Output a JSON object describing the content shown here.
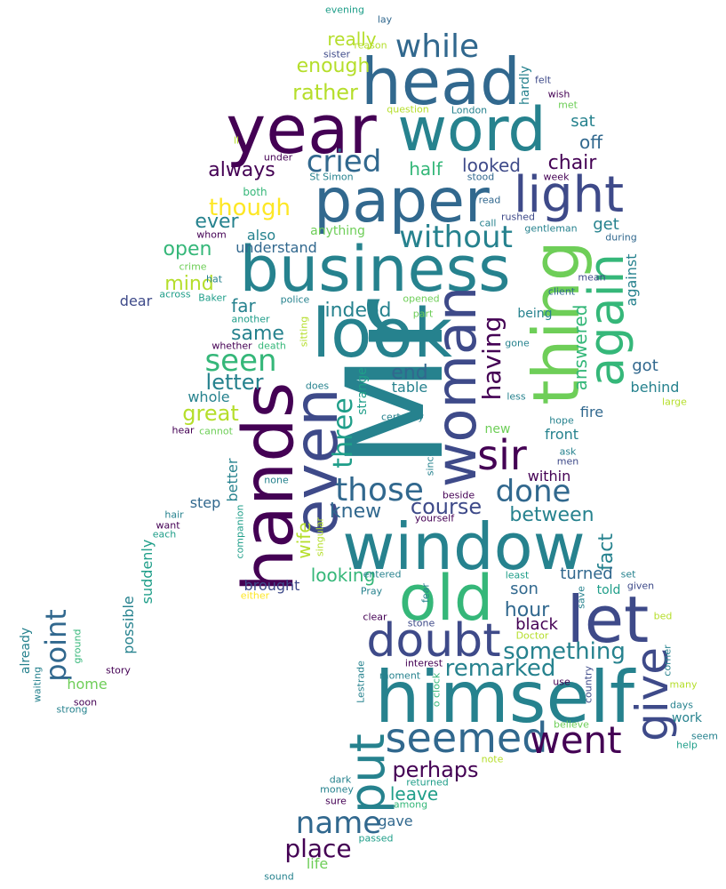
{
  "palette": {
    "dark_purple": "#440154",
    "indigo": "#3e4a89",
    "blue": "#31688e",
    "teal": "#26828e",
    "green": "#1f9e89",
    "light_green": "#35b779",
    "lime": "#6ece58",
    "yellow_green": "#b5de2b",
    "yellow": "#fde725"
  },
  "words": [
    {
      "text": "Mr",
      "color": "teal",
      "orientation": "vertical"
    },
    {
      "text": "window",
      "color": "teal",
      "orientation": "horizontal"
    },
    {
      "text": "business",
      "color": "teal",
      "orientation": "horizontal"
    },
    {
      "text": "paper",
      "color": "blue",
      "orientation": "horizontal"
    },
    {
      "text": "look",
      "color": "teal",
      "orientation": "horizontal"
    },
    {
      "text": "himself",
      "color": "teal",
      "orientation": "horizontal"
    },
    {
      "text": "head",
      "color": "blue",
      "orientation": "horizontal"
    },
    {
      "text": "word",
      "color": "teal",
      "orientation": "horizontal"
    },
    {
      "text": "year",
      "color": "dark_purple",
      "orientation": "horizontal"
    },
    {
      "text": "hands",
      "color": "dark_purple",
      "orientation": "vertical"
    },
    {
      "text": "even",
      "color": "indigo",
      "orientation": "vertical"
    },
    {
      "text": "woman",
      "color": "indigo",
      "orientation": "vertical"
    },
    {
      "text": "thing",
      "color": "lime",
      "orientation": "vertical"
    },
    {
      "text": "old",
      "color": "light_green",
      "orientation": "horizontal"
    },
    {
      "text": "let",
      "color": "indigo",
      "orientation": "horizontal"
    },
    {
      "text": "light",
      "color": "indigo",
      "orientation": "horizontal"
    },
    {
      "text": "again",
      "color": "light_green",
      "orientation": "vertical"
    },
    {
      "text": "doubt",
      "color": "indigo",
      "orientation": "horizontal"
    },
    {
      "text": "seemed",
      "color": "blue",
      "orientation": "horizontal"
    },
    {
      "text": "put",
      "color": "teal",
      "orientation": "vertical"
    },
    {
      "text": "give",
      "color": "indigo",
      "orientation": "vertical"
    },
    {
      "text": "went",
      "color": "dark_purple",
      "orientation": "horizontal"
    },
    {
      "text": "sir",
      "color": "dark_purple",
      "orientation": "horizontal"
    },
    {
      "text": "without",
      "color": "teal",
      "orientation": "horizontal"
    },
    {
      "text": "while",
      "color": "blue",
      "orientation": "horizontal"
    },
    {
      "text": "those",
      "color": "blue",
      "orientation": "horizontal"
    },
    {
      "text": "cried",
      "color": "blue",
      "orientation": "horizontal"
    },
    {
      "text": "seen",
      "color": "light_green",
      "orientation": "horizontal"
    },
    {
      "text": "name",
      "color": "blue",
      "orientation": "horizontal"
    },
    {
      "text": "point",
      "color": "blue",
      "orientation": "vertical"
    },
    {
      "text": "done",
      "color": "blue",
      "orientation": "horizontal"
    },
    {
      "text": "three",
      "color": "green",
      "orientation": "vertical"
    },
    {
      "text": "having",
      "color": "dark_purple",
      "orientation": "vertical"
    },
    {
      "text": "something",
      "color": "teal",
      "orientation": "horizontal"
    },
    {
      "text": "remarked",
      "color": "teal",
      "orientation": "horizontal"
    },
    {
      "text": "place",
      "color": "dark_purple",
      "orientation": "horizontal"
    },
    {
      "text": "perhaps",
      "color": "dark_purple",
      "orientation": "horizontal"
    },
    {
      "text": "though",
      "color": "yellow",
      "orientation": "horizontal"
    },
    {
      "text": "course",
      "color": "indigo",
      "orientation": "horizontal"
    },
    {
      "text": "great",
      "color": "yellow_green",
      "orientation": "horizontal"
    },
    {
      "text": "letter",
      "color": "teal",
      "orientation": "horizontal"
    },
    {
      "text": "always",
      "color": "dark_purple",
      "orientation": "horizontal"
    },
    {
      "text": "rather",
      "color": "yellow_green",
      "orientation": "horizontal"
    },
    {
      "text": "between",
      "color": "teal",
      "orientation": "horizontal"
    },
    {
      "text": "indeed",
      "color": "teal",
      "orientation": "horizontal"
    },
    {
      "text": "hour",
      "color": "blue",
      "orientation": "horizontal"
    },
    {
      "text": "fact",
      "color": "teal",
      "orientation": "vertical"
    },
    {
      "text": "knew",
      "color": "blue",
      "orientation": "horizontal"
    },
    {
      "text": "looked",
      "color": "indigo",
      "orientation": "horizontal"
    },
    {
      "text": "answered",
      "color": "light_green",
      "orientation": "vertical"
    },
    {
      "text": "open",
      "color": "light_green",
      "orientation": "horizontal"
    },
    {
      "text": "end",
      "color": "blue",
      "orientation": "horizontal"
    },
    {
      "text": "chair",
      "color": "dark_purple",
      "orientation": "horizontal"
    },
    {
      "text": "ever",
      "color": "teal",
      "orientation": "horizontal"
    },
    {
      "text": "mind",
      "color": "yellow_green",
      "orientation": "horizontal"
    },
    {
      "text": "same",
      "color": "teal",
      "orientation": "horizontal"
    },
    {
      "text": "enough",
      "color": "yellow_green",
      "orientation": "horizontal"
    },
    {
      "text": "half",
      "color": "light_green",
      "orientation": "horizontal"
    },
    {
      "text": "really",
      "color": "yellow_green",
      "orientation": "horizontal"
    },
    {
      "text": "wife",
      "color": "yellow_green",
      "orientation": "vertical"
    },
    {
      "text": "looking",
      "color": "light_green",
      "orientation": "horizontal"
    },
    {
      "text": "leave",
      "color": "green",
      "orientation": "horizontal"
    },
    {
      "text": "life",
      "color": "lime",
      "orientation": "horizontal"
    },
    {
      "text": "far",
      "color": "teal",
      "orientation": "horizontal"
    },
    {
      "text": "off",
      "color": "blue",
      "orientation": "horizontal"
    },
    {
      "text": "get",
      "color": "teal",
      "orientation": "horizontal"
    },
    {
      "text": "sat",
      "color": "teal",
      "orientation": "horizontal"
    },
    {
      "text": "got",
      "color": "blue",
      "orientation": "horizontal"
    },
    {
      "text": "son",
      "color": "blue",
      "orientation": "horizontal"
    },
    {
      "text": "turned",
      "color": "blue",
      "orientation": "horizontal"
    },
    {
      "text": "black",
      "color": "dark_purple",
      "orientation": "horizontal"
    },
    {
      "text": "brought",
      "color": "indigo",
      "orientation": "horizontal"
    },
    {
      "text": "also",
      "color": "teal",
      "orientation": "horizontal"
    },
    {
      "text": "better",
      "color": "teal",
      "orientation": "vertical"
    },
    {
      "text": "against",
      "color": "teal",
      "orientation": "vertical"
    },
    {
      "text": "behind",
      "color": "teal",
      "orientation": "horizontal"
    },
    {
      "text": "whole",
      "color": "teal",
      "orientation": "horizontal"
    },
    {
      "text": "table",
      "color": "teal",
      "orientation": "horizontal"
    },
    {
      "text": "fire",
      "color": "blue",
      "orientation": "horizontal"
    },
    {
      "text": "front",
      "color": "teal",
      "orientation": "horizontal"
    },
    {
      "text": "within",
      "color": "dark_purple",
      "orientation": "horizontal"
    },
    {
      "text": "strange",
      "color": "green",
      "orientation": "vertical"
    },
    {
      "text": "step",
      "color": "blue",
      "orientation": "horizontal"
    },
    {
      "text": "possible",
      "color": "teal",
      "orientation": "vertical"
    },
    {
      "text": "suddenly",
      "color": "green",
      "orientation": "vertical"
    },
    {
      "text": "already",
      "color": "teal",
      "orientation": "vertical"
    },
    {
      "text": "home",
      "color": "lime",
      "orientation": "horizontal"
    },
    {
      "text": "gave",
      "color": "blue",
      "orientation": "horizontal"
    },
    {
      "text": "being",
      "color": "teal",
      "orientation": "horizontal"
    },
    {
      "text": "hardly",
      "color": "teal",
      "orientation": "vertical"
    },
    {
      "text": "understand",
      "color": "blue",
      "orientation": "horizontal"
    },
    {
      "text": "anything",
      "color": "lime",
      "orientation": "horizontal"
    },
    {
      "text": "dear",
      "color": "indigo",
      "orientation": "horizontal"
    },
    {
      "text": "new",
      "color": "lime",
      "orientation": "horizontal"
    },
    {
      "text": "told",
      "color": "green",
      "orientation": "horizontal"
    },
    {
      "text": "work",
      "color": "teal",
      "orientation": "horizontal"
    },
    {
      "text": "evening",
      "color": "green",
      "orientation": "horizontal"
    },
    {
      "text": "lay",
      "color": "blue",
      "orientation": "horizontal"
    },
    {
      "text": "reason",
      "color": "yellow_green",
      "orientation": "horizontal"
    },
    {
      "text": "sister",
      "color": "indigo",
      "orientation": "horizontal"
    },
    {
      "text": "felt",
      "color": "indigo",
      "orientation": "horizontal"
    },
    {
      "text": "wish",
      "color": "dark_purple",
      "orientation": "horizontal"
    },
    {
      "text": "question",
      "color": "yellow_green",
      "orientation": "horizontal"
    },
    {
      "text": "London",
      "color": "teal",
      "orientation": "horizontal"
    },
    {
      "text": "met",
      "color": "lime",
      "orientation": "horizontal"
    },
    {
      "text": "ll",
      "color": "yellow_green",
      "orientation": "horizontal"
    },
    {
      "text": "under",
      "color": "dark_purple",
      "orientation": "horizontal"
    },
    {
      "text": "whom",
      "color": "dark_purple",
      "orientation": "horizontal"
    },
    {
      "text": "St Simon",
      "color": "teal",
      "orientation": "horizontal"
    },
    {
      "text": "stood",
      "color": "blue",
      "orientation": "horizontal"
    },
    {
      "text": "week",
      "color": "dark_purple",
      "orientation": "horizontal"
    },
    {
      "text": "both",
      "color": "light_green",
      "orientation": "horizontal"
    },
    {
      "text": "read",
      "color": "blue",
      "orientation": "horizontal"
    },
    {
      "text": "call",
      "color": "teal",
      "orientation": "horizontal"
    },
    {
      "text": "rushed",
      "color": "indigo",
      "orientation": "horizontal"
    },
    {
      "text": "gentleman",
      "color": "teal",
      "orientation": "horizontal"
    },
    {
      "text": "during",
      "color": "blue",
      "orientation": "horizontal"
    },
    {
      "text": "crime",
      "color": "lime",
      "orientation": "horizontal"
    },
    {
      "text": "hat",
      "color": "teal",
      "orientation": "horizontal"
    },
    {
      "text": "mean",
      "color": "indigo",
      "orientation": "horizontal"
    },
    {
      "text": "across",
      "color": "green",
      "orientation": "horizontal"
    },
    {
      "text": "Baker",
      "color": "green",
      "orientation": "horizontal"
    },
    {
      "text": "client",
      "color": "blue",
      "orientation": "horizontal"
    },
    {
      "text": "police",
      "color": "teal",
      "orientation": "horizontal"
    },
    {
      "text": "opened",
      "color": "lime",
      "orientation": "horizontal"
    },
    {
      "text": "part",
      "color": "lime",
      "orientation": "horizontal"
    },
    {
      "text": "another",
      "color": "green",
      "orientation": "horizontal"
    },
    {
      "text": "sitting",
      "color": "yellow_green",
      "orientation": "vertical"
    },
    {
      "text": "whether",
      "color": "dark_purple",
      "orientation": "horizontal"
    },
    {
      "text": "death",
      "color": "light_green",
      "orientation": "horizontal"
    },
    {
      "text": "gone",
      "color": "teal",
      "orientation": "horizontal"
    },
    {
      "text": "does",
      "color": "teal",
      "orientation": "horizontal"
    },
    {
      "text": "less",
      "color": "teal",
      "orientation": "horizontal"
    },
    {
      "text": "large",
      "color": "yellow_green",
      "orientation": "horizontal"
    },
    {
      "text": "hope",
      "color": "teal",
      "orientation": "horizontal"
    },
    {
      "text": "hear",
      "color": "dark_purple",
      "orientation": "horizontal"
    },
    {
      "text": "cannot",
      "color": "lime",
      "orientation": "horizontal"
    },
    {
      "text": "certainly",
      "color": "teal",
      "orientation": "horizontal"
    },
    {
      "text": "ask",
      "color": "teal",
      "orientation": "horizontal"
    },
    {
      "text": "men",
      "color": "indigo",
      "orientation": "horizontal"
    },
    {
      "text": "since",
      "color": "teal",
      "orientation": "vertical"
    },
    {
      "text": "none",
      "color": "teal",
      "orientation": "horizontal"
    },
    {
      "text": "beside",
      "color": "dark_purple",
      "orientation": "horizontal"
    },
    {
      "text": "yourself",
      "color": "dark_purple",
      "orientation": "horizontal"
    },
    {
      "text": "companion",
      "color": "green",
      "orientation": "vertical"
    },
    {
      "text": "singular",
      "color": "yellow_green",
      "orientation": "vertical"
    },
    {
      "text": "hair",
      "color": "teal",
      "orientation": "horizontal"
    },
    {
      "text": "want",
      "color": "dark_purple",
      "orientation": "horizontal"
    },
    {
      "text": "each",
      "color": "green",
      "orientation": "horizontal"
    },
    {
      "text": "either",
      "color": "yellow",
      "orientation": "horizontal"
    },
    {
      "text": "entered",
      "color": "teal",
      "orientation": "horizontal"
    },
    {
      "text": "least",
      "color": "green",
      "orientation": "horizontal"
    },
    {
      "text": "set",
      "color": "teal",
      "orientation": "horizontal"
    },
    {
      "text": "given",
      "color": "indigo",
      "orientation": "horizontal"
    },
    {
      "text": "Pray",
      "color": "teal",
      "orientation": "horizontal"
    },
    {
      "text": "fear",
      "color": "teal",
      "orientation": "vertical"
    },
    {
      "text": "save",
      "color": "teal",
      "orientation": "vertical"
    },
    {
      "text": "bed",
      "color": "yellow_green",
      "orientation": "horizontal"
    },
    {
      "text": "clear",
      "color": "dark_purple",
      "orientation": "horizontal"
    },
    {
      "text": "stone",
      "color": "indigo",
      "orientation": "horizontal"
    },
    {
      "text": "Doctor",
      "color": "yellow_green",
      "orientation": "horizontal"
    },
    {
      "text": "ground",
      "color": "light_green",
      "orientation": "vertical"
    },
    {
      "text": "story",
      "color": "dark_purple",
      "orientation": "horizontal"
    },
    {
      "text": "interest",
      "color": "dark_purple",
      "orientation": "horizontal"
    },
    {
      "text": "moment",
      "color": "teal",
      "orientation": "horizontal"
    },
    {
      "text": "use",
      "color": "dark_purple",
      "orientation": "horizontal"
    },
    {
      "text": "corner",
      "color": "teal",
      "orientation": "vertical"
    },
    {
      "text": "waiting",
      "color": "teal",
      "orientation": "vertical"
    },
    {
      "text": "Lestrade",
      "color": "teal",
      "orientation": "vertical"
    },
    {
      "text": "o clock",
      "color": "light_green",
      "orientation": "vertical"
    },
    {
      "text": "country",
      "color": "indigo",
      "orientation": "vertical"
    },
    {
      "text": "days",
      "color": "teal",
      "orientation": "horizontal"
    },
    {
      "text": "many",
      "color": "yellow_green",
      "orientation": "horizontal"
    },
    {
      "text": "soon",
      "color": "dark_purple",
      "orientation": "horizontal"
    },
    {
      "text": "strong",
      "color": "teal",
      "orientation": "horizontal"
    },
    {
      "text": "believe",
      "color": "lime",
      "orientation": "horizontal"
    },
    {
      "text": "seem",
      "color": "teal",
      "orientation": "horizontal"
    },
    {
      "text": "help",
      "color": "green",
      "orientation": "horizontal"
    },
    {
      "text": "note",
      "color": "yellow_green",
      "orientation": "horizontal"
    },
    {
      "text": "dark",
      "color": "teal",
      "orientation": "horizontal"
    },
    {
      "text": "returned",
      "color": "green",
      "orientation": "horizontal"
    },
    {
      "text": "money",
      "color": "teal",
      "orientation": "horizontal"
    },
    {
      "text": "sure",
      "color": "dark_purple",
      "orientation": "horizontal"
    },
    {
      "text": "among",
      "color": "light_green",
      "orientation": "horizontal"
    },
    {
      "text": "passed",
      "color": "green",
      "orientation": "horizontal"
    },
    {
      "text": "sound",
      "color": "teal",
      "orientation": "horizontal"
    }
  ]
}
